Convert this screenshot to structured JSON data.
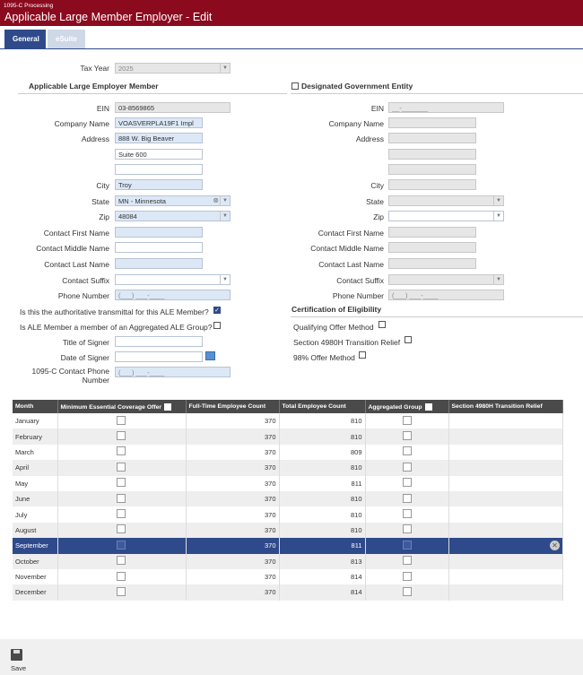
{
  "header": {
    "subtitle": "1095-C Processing",
    "title": "Applicable Large Member Employer - Edit"
  },
  "tabs": [
    {
      "label": "General"
    },
    {
      "label": "eSuite"
    }
  ],
  "form": {
    "tax_year_label": "Tax Year",
    "tax_year": "2025",
    "ale_section": "Applicable Large Employer Member",
    "dge_section": "Designated Government Entity",
    "ein_label": "EIN",
    "ein": "03-8569865",
    "dge_ein": "__-_______",
    "company_label": "Company Name",
    "company": "VOASVERPLA19F1 Impl",
    "address_label": "Address",
    "address1": "888 W. Big Beaver",
    "address2": "Suite 600",
    "city_label": "City",
    "city": "Troy",
    "state_label": "State",
    "state": "MN - Minnesota",
    "zip_label": "Zip",
    "zip": "48084",
    "first_label": "Contact First Name",
    "middle_label": "Contact Middle Name",
    "last_label": "Contact Last Name",
    "suffix_label": "Contact Suffix",
    "phone_label": "Phone Number",
    "phone": "(___) ___-____",
    "auth_q": "Is this the authoritative transmittal for this ALE Member?",
    "agg_q": "Is ALE Member a member of an Aggregated ALE Group?",
    "signer_title_label": "Title of Signer",
    "signer_date_label": "Date of Signer",
    "contact_phone_label_1": "1095-C Contact Phone",
    "contact_phone_label_2": "Number",
    "cert_section": "Certification of Eligibility",
    "cert_qom": "Qualifying Offer Method",
    "cert_4980h": "Section 4980H Transition Relief",
    "cert_98": "98% Offer Method"
  },
  "table": {
    "headers": [
      "Month",
      "Minimum Essential Coverage Offer",
      "Full-Time Employee Count",
      "Total Employee Count",
      "Aggregated Group",
      "Section 4980H Transition Relief"
    ],
    "rows": [
      {
        "month": "January",
        "ft": "370",
        "total": "810"
      },
      {
        "month": "February",
        "ft": "370",
        "total": "810"
      },
      {
        "month": "March",
        "ft": "370",
        "total": "809"
      },
      {
        "month": "April",
        "ft": "370",
        "total": "810"
      },
      {
        "month": "May",
        "ft": "370",
        "total": "811"
      },
      {
        "month": "June",
        "ft": "370",
        "total": "810"
      },
      {
        "month": "July",
        "ft": "370",
        "total": "810"
      },
      {
        "month": "August",
        "ft": "370",
        "total": "810"
      },
      {
        "month": "September",
        "ft": "370",
        "total": "811"
      },
      {
        "month": "October",
        "ft": "370",
        "total": "813"
      },
      {
        "month": "November",
        "ft": "370",
        "total": "814"
      },
      {
        "month": "December",
        "ft": "370",
        "total": "814"
      }
    ]
  },
  "footer": {
    "save_label": "Save"
  },
  "colors": {
    "header": "#8b0a1e",
    "tab_active": "#2f4a8a",
    "selected_row": "#2f4a8a"
  }
}
